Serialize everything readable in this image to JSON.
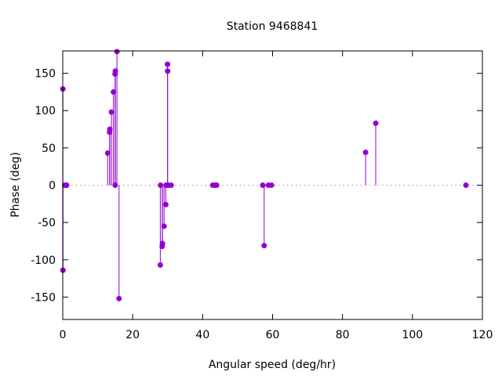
{
  "chart_data": {
    "type": "scatter",
    "style": "impulses-with-points",
    "title": "Station 9468841",
    "xlabel": "Angular speed (deg/hr)",
    "ylabel": "Phase (deg)",
    "xlim": [
      0,
      120
    ],
    "ylim": [
      -180,
      180
    ],
    "xticks": [
      0,
      20,
      40,
      60,
      80,
      100,
      120
    ],
    "yticks": [
      -150,
      -100,
      -50,
      0,
      50,
      100,
      150
    ],
    "grid": false,
    "zero_line": "dotted",
    "color": "#9400d3",
    "points": [
      [
        0.04,
        129
      ],
      [
        0.08,
        -114
      ],
      [
        0.54,
        0
      ],
      [
        1.02,
        0
      ],
      [
        1.1,
        0
      ],
      [
        12.85,
        43
      ],
      [
        13.4,
        71
      ],
      [
        13.47,
        75
      ],
      [
        13.94,
        98
      ],
      [
        14.5,
        125
      ],
      [
        14.96,
        149
      ],
      [
        15.0,
        0
      ],
      [
        15.04,
        153
      ],
      [
        15.5,
        179
      ],
      [
        16.1,
        -152
      ],
      [
        27.9,
        -107
      ],
      [
        27.97,
        0
      ],
      [
        28.44,
        -82
      ],
      [
        28.51,
        -78
      ],
      [
        28.98,
        -55
      ],
      [
        29.46,
        -26
      ],
      [
        29.53,
        0
      ],
      [
        29.96,
        162
      ],
      [
        30.0,
        153
      ],
      [
        30.08,
        0
      ],
      [
        30.1,
        0
      ],
      [
        31.0,
        0
      ],
      [
        42.9,
        0
      ],
      [
        43.5,
        0
      ],
      [
        44.0,
        0
      ],
      [
        57.2,
        0
      ],
      [
        57.6,
        -81
      ],
      [
        58.8,
        0
      ],
      [
        59.7,
        0
      ],
      [
        86.6,
        44
      ],
      [
        89.5,
        83
      ],
      [
        115.3,
        0
      ]
    ]
  }
}
